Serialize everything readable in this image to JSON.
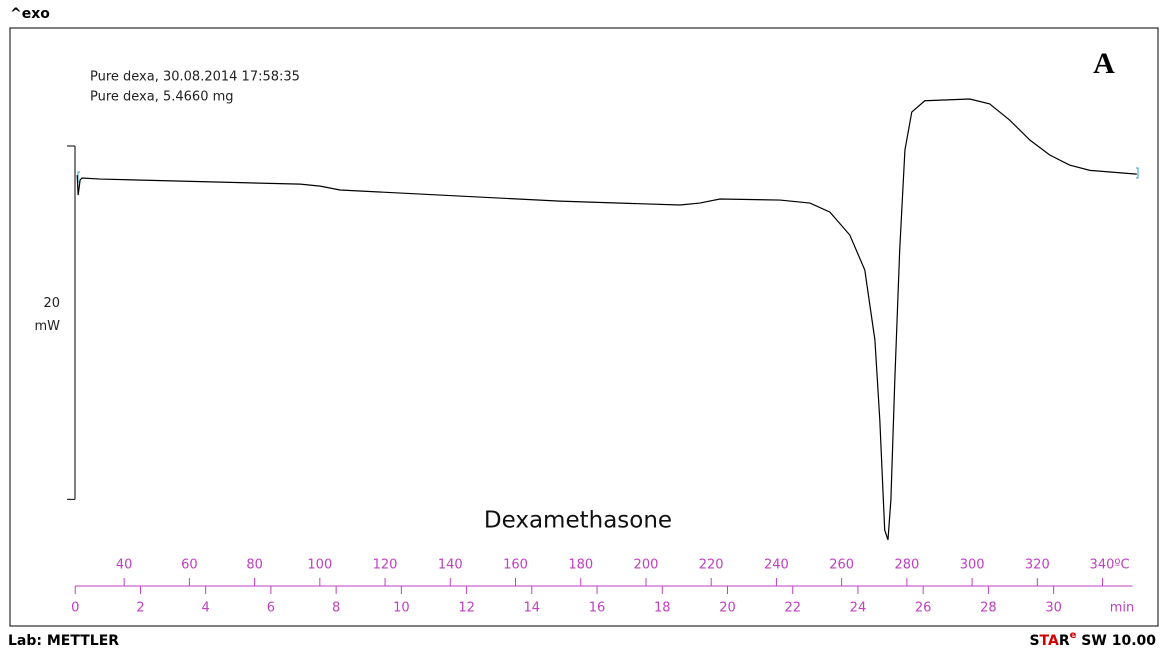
{
  "header": "^exo",
  "chart_data": {
    "type": "line",
    "annotations": [
      "Pure dexa, 30.08.2014 17:58:35",
      "Pure dexa, 5.4660 mg"
    ],
    "panel_label": "A",
    "title": "Dexamethasone",
    "x": [
      0.06,
      0.09,
      0.15,
      0.21,
      0.77,
      6.9,
      7.51,
      8.12,
      14.86,
      18.54,
      19.15,
      19.77,
      21.61,
      22.53,
      23.14,
      23.75,
      24.21,
      24.52,
      24.67,
      24.82,
      24.92,
      25.01,
      25.13,
      25.28,
      25.44,
      25.65,
      26.05,
      27.43,
      28.04,
      28.65,
      29.27,
      29.88,
      30.49,
      31.11,
      32.55
    ],
    "series": [
      {
        "name": "Pure dexa",
        "color": "#000000",
        "values": [
          22.35,
          21.22,
          22.08,
          22.19,
          22.13,
          21.84,
          21.73,
          21.51,
          20.88,
          20.66,
          20.77,
          21.0,
          20.94,
          20.77,
          20.26,
          18.96,
          16.98,
          13.02,
          8.49,
          2.26,
          1.7,
          3.96,
          10.75,
          18.11,
          23.77,
          25.92,
          26.56,
          26.66,
          26.38,
          25.47,
          24.34,
          23.49,
          22.92,
          22.62,
          22.41
        ]
      }
    ],
    "xlim": [
      -2,
      33.2
    ],
    "xticks": [
      0,
      2,
      4,
      6,
      8,
      10,
      12,
      14,
      16,
      18,
      20,
      22,
      24,
      26,
      28,
      30
    ],
    "xlabel": "min",
    "x2lim": [
      5,
      357
    ],
    "x2ticks": [
      40,
      60,
      80,
      100,
      120,
      140,
      160,
      180,
      200,
      220,
      240,
      260,
      280,
      300,
      320,
      {
        "value": 340,
        "label": "340ºC"
      }
    ],
    "ylim": [
      0,
      30
    ],
    "scale_bar": {
      "start": 4,
      "value": 20,
      "unit": "mW"
    },
    "axis_color": "#c040c0"
  },
  "footer": {
    "lab": "Lab: METTLER",
    "software": [
      "S",
      "TA",
      "R",
      "e",
      " SW 10.00"
    ]
  }
}
